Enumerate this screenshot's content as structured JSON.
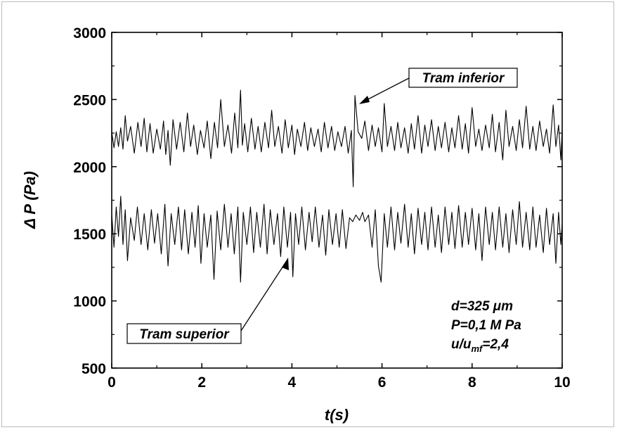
{
  "chart_data": {
    "type": "line",
    "title": "",
    "xlabel": "t(s)",
    "ylabel": "Δ P (Pa)",
    "xlim": [
      0,
      10
    ],
    "ylim": [
      500,
      3000
    ],
    "xticks": [
      "0",
      "2",
      "4",
      "6",
      "8",
      "10"
    ],
    "yticks": [
      "500",
      "1000",
      "1500",
      "2000",
      "2500",
      "3000"
    ],
    "grid": false,
    "legend": "none",
    "series": [
      {
        "name": "Tram inferior",
        "color": "#000000",
        "base": 2220,
        "values": [
          [
            0.0,
            2260
          ],
          [
            0.05,
            2140
          ],
          [
            0.1,
            2260
          ],
          [
            0.15,
            2150
          ],
          [
            0.2,
            2290
          ],
          [
            0.25,
            2130
          ],
          [
            0.3,
            2380
          ],
          [
            0.35,
            2190
          ],
          [
            0.42,
            2300
          ],
          [
            0.5,
            2100
          ],
          [
            0.58,
            2330
          ],
          [
            0.65,
            2150
          ],
          [
            0.72,
            2360
          ],
          [
            0.78,
            2110
          ],
          [
            0.85,
            2320
          ],
          [
            0.92,
            2100
          ],
          [
            1.0,
            2280
          ],
          [
            1.08,
            2130
          ],
          [
            1.15,
            2340
          ],
          [
            1.2,
            2090
          ],
          [
            1.25,
            2270
          ],
          [
            1.3,
            2010
          ],
          [
            1.36,
            2350
          ],
          [
            1.44,
            2130
          ],
          [
            1.52,
            2330
          ],
          [
            1.6,
            2110
          ],
          [
            1.68,
            2400
          ],
          [
            1.75,
            2150
          ],
          [
            1.82,
            2310
          ],
          [
            1.9,
            2090
          ],
          [
            1.97,
            2270
          ],
          [
            2.05,
            2140
          ],
          [
            2.12,
            2340
          ],
          [
            2.2,
            2060
          ],
          [
            2.28,
            2330
          ],
          [
            2.35,
            2140
          ],
          [
            2.42,
            2500
          ],
          [
            2.5,
            2150
          ],
          [
            2.58,
            2310
          ],
          [
            2.66,
            2100
          ],
          [
            2.73,
            2400
          ],
          [
            2.8,
            2140
          ],
          [
            2.86,
            2570
          ],
          [
            2.9,
            2160
          ],
          [
            2.95,
            2320
          ],
          [
            3.02,
            2110
          ],
          [
            3.1,
            2360
          ],
          [
            3.18,
            2130
          ],
          [
            3.25,
            2300
          ],
          [
            3.32,
            2110
          ],
          [
            3.4,
            2330
          ],
          [
            3.48,
            2140
          ],
          [
            3.55,
            2420
          ],
          [
            3.62,
            2150
          ],
          [
            3.7,
            2300
          ],
          [
            3.78,
            2100
          ],
          [
            3.85,
            2350
          ],
          [
            3.92,
            2140
          ],
          [
            4.0,
            2310
          ],
          [
            4.06,
            2090
          ],
          [
            4.12,
            2280
          ],
          [
            4.2,
            2150
          ],
          [
            4.28,
            2330
          ],
          [
            4.35,
            2120
          ],
          [
            4.42,
            2290
          ],
          [
            4.5,
            2150
          ],
          [
            4.58,
            2280
          ],
          [
            4.65,
            2110
          ],
          [
            4.72,
            2330
          ],
          [
            4.8,
            2140
          ],
          [
            4.88,
            2300
          ],
          [
            4.95,
            2120
          ],
          [
            5.02,
            2260
          ],
          [
            5.1,
            2150
          ],
          [
            5.18,
            2300
          ],
          [
            5.25,
            2100
          ],
          [
            5.32,
            2270
          ],
          [
            5.36,
            1850
          ],
          [
            5.4,
            2530
          ],
          [
            5.47,
            2260
          ],
          [
            5.55,
            2210
          ],
          [
            5.62,
            2340
          ],
          [
            5.7,
            2120
          ],
          [
            5.78,
            2310
          ],
          [
            5.85,
            2150
          ],
          [
            5.92,
            2290
          ],
          [
            6.0,
            2110
          ],
          [
            6.05,
            2470
          ],
          [
            6.12,
            2150
          ],
          [
            6.2,
            2300
          ],
          [
            6.28,
            2120
          ],
          [
            6.35,
            2330
          ],
          [
            6.42,
            2140
          ],
          [
            6.5,
            2290
          ],
          [
            6.58,
            2100
          ],
          [
            6.65,
            2320
          ],
          [
            6.72,
            2130
          ],
          [
            6.8,
            2380
          ],
          [
            6.88,
            2100
          ],
          [
            6.95,
            2310
          ],
          [
            7.02,
            2150
          ],
          [
            7.1,
            2350
          ],
          [
            7.18,
            2120
          ],
          [
            7.25,
            2300
          ],
          [
            7.32,
            2140
          ],
          [
            7.4,
            2330
          ],
          [
            7.48,
            2110
          ],
          [
            7.55,
            2290
          ],
          [
            7.62,
            2140
          ],
          [
            7.7,
            2380
          ],
          [
            7.78,
            2130
          ],
          [
            7.85,
            2320
          ],
          [
            7.92,
            2100
          ],
          [
            8.0,
            2440
          ],
          [
            8.08,
            2150
          ],
          [
            8.15,
            2280
          ],
          [
            8.22,
            2120
          ],
          [
            8.3,
            2310
          ],
          [
            8.38,
            2140
          ],
          [
            8.45,
            2390
          ],
          [
            8.52,
            2110
          ],
          [
            8.6,
            2330
          ],
          [
            8.68,
            2050
          ],
          [
            8.75,
            2420
          ],
          [
            8.82,
            2150
          ],
          [
            8.9,
            2300
          ],
          [
            8.98,
            2120
          ],
          [
            9.05,
            2350
          ],
          [
            9.12,
            2140
          ],
          [
            9.2,
            2450
          ],
          [
            9.28,
            2130
          ],
          [
            9.35,
            2300
          ],
          [
            9.42,
            2120
          ],
          [
            9.5,
            2340
          ],
          [
            9.58,
            2150
          ],
          [
            9.65,
            2280
          ],
          [
            9.72,
            2100
          ],
          [
            9.8,
            2460
          ],
          [
            9.86,
            2150
          ],
          [
            9.92,
            2310
          ],
          [
            9.97,
            2050
          ],
          [
            10.0,
            2280
          ]
        ]
      },
      {
        "name": "Tram superior",
        "color": "#000000",
        "base": 1550,
        "values": [
          [
            0.0,
            1650
          ],
          [
            0.05,
            1400
          ],
          [
            0.1,
            1700
          ],
          [
            0.15,
            1480
          ],
          [
            0.2,
            1780
          ],
          [
            0.25,
            1420
          ],
          [
            0.3,
            1680
          ],
          [
            0.35,
            1300
          ],
          [
            0.42,
            1620
          ],
          [
            0.5,
            1450
          ],
          [
            0.57,
            1700
          ],
          [
            0.65,
            1420
          ],
          [
            0.72,
            1650
          ],
          [
            0.8,
            1380
          ],
          [
            0.88,
            1680
          ],
          [
            0.95,
            1430
          ],
          [
            1.02,
            1650
          ],
          [
            1.1,
            1350
          ],
          [
            1.18,
            1720
          ],
          [
            1.25,
            1260
          ],
          [
            1.32,
            1650
          ],
          [
            1.4,
            1420
          ],
          [
            1.48,
            1700
          ],
          [
            1.55,
            1380
          ],
          [
            1.62,
            1680
          ],
          [
            1.7,
            1350
          ],
          [
            1.78,
            1660
          ],
          [
            1.85,
            1400
          ],
          [
            1.92,
            1710
          ],
          [
            1.98,
            1280
          ],
          [
            2.05,
            1650
          ],
          [
            2.12,
            1400
          ],
          [
            2.2,
            1640
          ],
          [
            2.27,
            1160
          ],
          [
            2.34,
            1670
          ],
          [
            2.42,
            1380
          ],
          [
            2.5,
            1720
          ],
          [
            2.58,
            1400
          ],
          [
            2.65,
            1650
          ],
          [
            2.72,
            1350
          ],
          [
            2.8,
            1700
          ],
          [
            2.86,
            1140
          ],
          [
            2.92,
            1660
          ],
          [
            3.0,
            1420
          ],
          [
            3.08,
            1700
          ],
          [
            3.15,
            1360
          ],
          [
            3.22,
            1660
          ],
          [
            3.3,
            1400
          ],
          [
            3.38,
            1720
          ],
          [
            3.45,
            1350
          ],
          [
            3.52,
            1680
          ],
          [
            3.6,
            1420
          ],
          [
            3.68,
            1650
          ],
          [
            3.75,
            1330
          ],
          [
            3.82,
            1700
          ],
          [
            3.9,
            1400
          ],
          [
            3.97,
            1660
          ],
          [
            4.02,
            1180
          ],
          [
            4.08,
            1650
          ],
          [
            4.15,
            1420
          ],
          [
            4.22,
            1700
          ],
          [
            4.3,
            1380
          ],
          [
            4.38,
            1660
          ],
          [
            4.45,
            1440
          ],
          [
            4.52,
            1700
          ],
          [
            4.6,
            1400
          ],
          [
            4.68,
            1640
          ],
          [
            4.75,
            1340
          ],
          [
            4.82,
            1680
          ],
          [
            4.9,
            1420
          ],
          [
            4.98,
            1650
          ],
          [
            5.05,
            1400
          ],
          [
            5.12,
            1680
          ],
          [
            5.2,
            1390
          ],
          [
            5.28,
            1620
          ],
          [
            5.35,
            1590
          ],
          [
            5.42,
            1640
          ],
          [
            5.5,
            1600
          ],
          [
            5.57,
            1660
          ],
          [
            5.62,
            1590
          ],
          [
            5.7,
            1640
          ],
          [
            5.78,
            1400
          ],
          [
            5.85,
            1680
          ],
          [
            5.92,
            1260
          ],
          [
            5.98,
            1140
          ],
          [
            6.05,
            1650
          ],
          [
            6.12,
            1400
          ],
          [
            6.2,
            1700
          ],
          [
            6.28,
            1380
          ],
          [
            6.35,
            1660
          ],
          [
            6.42,
            1430
          ],
          [
            6.5,
            1720
          ],
          [
            6.58,
            1400
          ],
          [
            6.65,
            1650
          ],
          [
            6.72,
            1350
          ],
          [
            6.8,
            1690
          ],
          [
            6.88,
            1420
          ],
          [
            6.95,
            1660
          ],
          [
            7.02,
            1380
          ],
          [
            7.1,
            1700
          ],
          [
            7.18,
            1400
          ],
          [
            7.25,
            1640
          ],
          [
            7.32,
            1360
          ],
          [
            7.4,
            1700
          ],
          [
            7.48,
            1420
          ],
          [
            7.55,
            1660
          ],
          [
            7.62,
            1390
          ],
          [
            7.7,
            1710
          ],
          [
            7.78,
            1400
          ],
          [
            7.85,
            1660
          ],
          [
            7.92,
            1420
          ],
          [
            8.0,
            1690
          ],
          [
            8.08,
            1380
          ],
          [
            8.15,
            1650
          ],
          [
            8.22,
            1300
          ],
          [
            8.3,
            1700
          ],
          [
            8.38,
            1420
          ],
          [
            8.45,
            1660
          ],
          [
            8.52,
            1380
          ],
          [
            8.6,
            1700
          ],
          [
            8.68,
            1400
          ],
          [
            8.75,
            1650
          ],
          [
            8.82,
            1360
          ],
          [
            8.9,
            1680
          ],
          [
            8.98,
            1420
          ],
          [
            9.05,
            1740
          ],
          [
            9.12,
            1400
          ],
          [
            9.2,
            1660
          ],
          [
            9.28,
            1380
          ],
          [
            9.35,
            1700
          ],
          [
            9.42,
            1400
          ],
          [
            9.5,
            1640
          ],
          [
            9.58,
            1360
          ],
          [
            9.65,
            1690
          ],
          [
            9.72,
            1420
          ],
          [
            9.8,
            1650
          ],
          [
            9.86,
            1280
          ],
          [
            9.92,
            1660
          ],
          [
            9.97,
            1420
          ],
          [
            10.0,
            1580
          ]
        ]
      }
    ],
    "annotations": {
      "upper_label": "Tram inferior",
      "lower_label": "Tram superior",
      "param_d": "d=325 μm",
      "param_p": "P=0,1 M Pa",
      "param_u_main": "u/u",
      "param_u_sub": "mf",
      "param_u_value": "=2,4"
    }
  }
}
